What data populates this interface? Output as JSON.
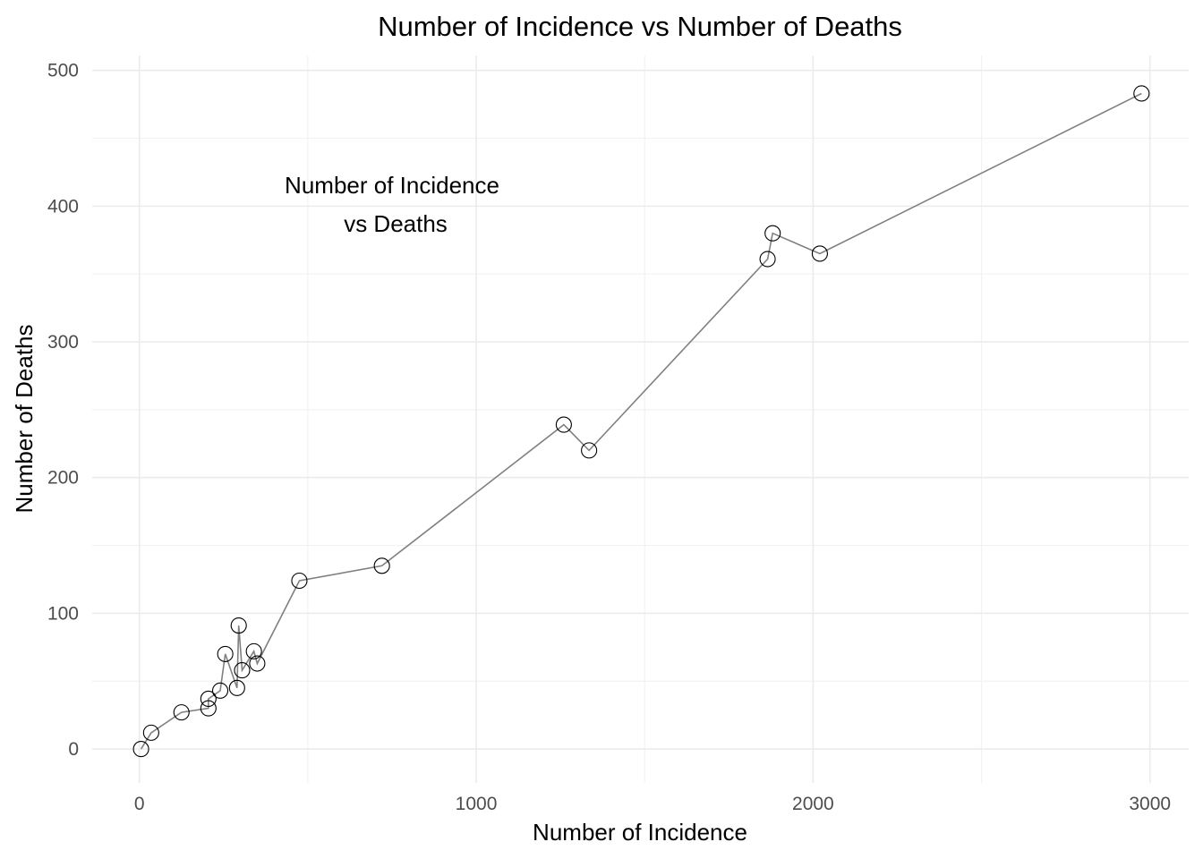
{
  "chart_data": {
    "type": "line",
    "title": "Number of Incidence vs Number of Deaths",
    "xlabel": "Number of Incidence",
    "ylabel": "Number of Deaths",
    "annotation": [
      "Number of Incidence",
      "vs Deaths"
    ],
    "xlim": [
      -140,
      3115
    ],
    "ylim": [
      -25,
      511
    ],
    "x_ticks": [
      0,
      1000,
      2000,
      3000
    ],
    "x_tick_labels": [
      "0",
      "1000",
      "2000",
      "3000"
    ],
    "y_ticks": [
      0,
      100,
      200,
      300,
      400,
      500
    ],
    "y_tick_labels": [
      "0",
      "100",
      "200",
      "300",
      "400",
      "500"
    ],
    "grid": true,
    "series": [
      {
        "line_color": "#808080",
        "marker": "open-circle",
        "marker_color": "#000000",
        "points": [
          {
            "x": 5,
            "y": 0
          },
          {
            "x": 35,
            "y": 12
          },
          {
            "x": 125,
            "y": 27
          },
          {
            "x": 205,
            "y": 30
          },
          {
            "x": 205,
            "y": 37
          },
          {
            "x": 240,
            "y": 43
          },
          {
            "x": 255,
            "y": 70
          },
          {
            "x": 290,
            "y": 45
          },
          {
            "x": 295,
            "y": 91
          },
          {
            "x": 305,
            "y": 58
          },
          {
            "x": 340,
            "y": 72
          },
          {
            "x": 350,
            "y": 63
          },
          {
            "x": 475,
            "y": 124
          },
          {
            "x": 720,
            "y": 135
          },
          {
            "x": 1260,
            "y": 239
          },
          {
            "x": 1335,
            "y": 220
          },
          {
            "x": 1865,
            "y": 361
          },
          {
            "x": 1880,
            "y": 380
          },
          {
            "x": 2020,
            "y": 365
          },
          {
            "x": 2975,
            "y": 483
          }
        ]
      }
    ]
  }
}
